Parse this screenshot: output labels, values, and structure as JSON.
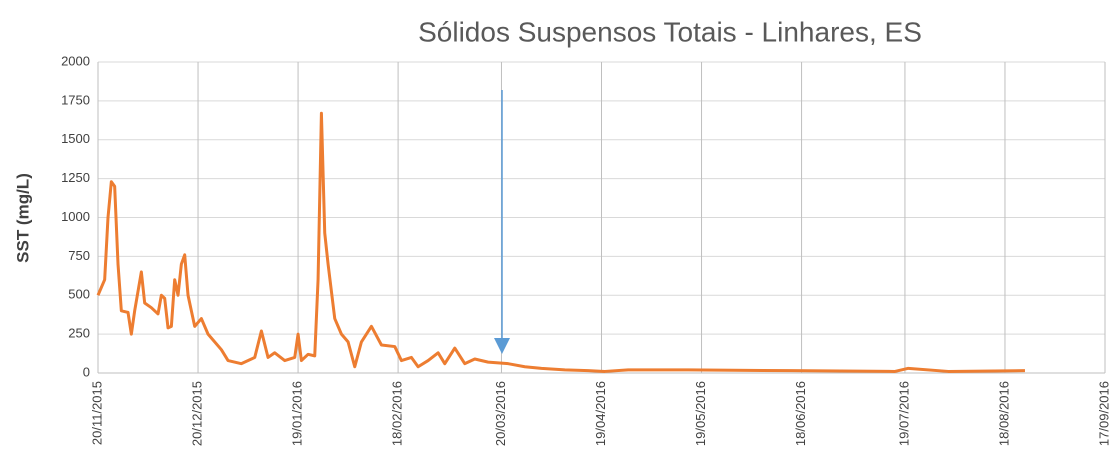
{
  "chart_data": {
    "type": "line",
    "title": "Sólidos Suspensos Totais - Linhares, ES",
    "ylabel": "SST (mg/L)",
    "ylim": [
      0,
      2000
    ],
    "yticks": [
      0,
      250,
      500,
      750,
      1000,
      1250,
      1500,
      1750,
      2000
    ],
    "xlim": [
      "20/11/2015",
      "17/09/2016"
    ],
    "xticks": [
      "20/11/2015",
      "20/12/2015",
      "19/01/2016",
      "18/02/2016",
      "20/03/2016",
      "19/04/2016",
      "19/05/2016",
      "18/06/2016",
      "19/07/2016",
      "18/08/2016",
      "17/09/2016"
    ],
    "grid": true,
    "x": [
      "20/11/2015",
      "22/11/2015",
      "23/11/2015",
      "24/11/2015",
      "25/11/2015",
      "26/11/2015",
      "27/11/2015",
      "29/11/2015",
      "30/11/2015",
      "01/12/2015",
      "03/12/2015",
      "04/12/2015",
      "06/12/2015",
      "08/12/2015",
      "09/12/2015",
      "10/12/2015",
      "11/12/2015",
      "12/12/2015",
      "13/12/2015",
      "14/12/2015",
      "15/12/2015",
      "16/12/2015",
      "17/12/2015",
      "18/12/2015",
      "19/12/2015",
      "21/12/2015",
      "23/12/2015",
      "27/12/2015",
      "29/12/2015",
      "02/01/2016",
      "06/01/2016",
      "08/01/2016",
      "10/01/2016",
      "12/01/2016",
      "15/01/2016",
      "18/01/2016",
      "19/01/2016",
      "20/01/2016",
      "22/01/2016",
      "24/01/2016",
      "25/01/2016",
      "26/01/2016",
      "27/01/2016",
      "28/01/2016",
      "30/01/2016",
      "01/02/2016",
      "03/02/2016",
      "05/02/2016",
      "07/02/2016",
      "10/02/2016",
      "13/02/2016",
      "17/02/2016",
      "19/02/2016",
      "22/02/2016",
      "24/02/2016",
      "27/02/2016",
      "01/03/2016",
      "03/03/2016",
      "06/03/2016",
      "09/03/2016",
      "12/03/2016",
      "16/03/2016",
      "22/03/2016",
      "27/03/2016",
      "01/04/2016",
      "08/04/2016",
      "15/04/2016",
      "20/04/2016",
      "27/04/2016",
      "15/05/2016",
      "15/06/2016",
      "16/07/2016",
      "20/07/2016",
      "01/08/2016",
      "24/08/2016"
    ],
    "series": [
      {
        "name": "SST",
        "color": "#ed7d31",
        "values": [
          500,
          600,
          1000,
          1230,
          1200,
          700,
          400,
          390,
          250,
          400,
          650,
          450,
          420,
          380,
          500,
          480,
          290,
          300,
          600,
          500,
          700,
          760,
          500,
          400,
          300,
          350,
          250,
          150,
          80,
          60,
          100,
          270,
          100,
          130,
          80,
          100,
          250,
          80,
          120,
          110,
          600,
          1670,
          900,
          700,
          350,
          250,
          200,
          40,
          200,
          300,
          180,
          170,
          80,
          100,
          40,
          80,
          130,
          60,
          160,
          60,
          90,
          70,
          60,
          40,
          30,
          20,
          15,
          10,
          20,
          20,
          15,
          10,
          30,
          10,
          15
        ]
      }
    ]
  }
}
